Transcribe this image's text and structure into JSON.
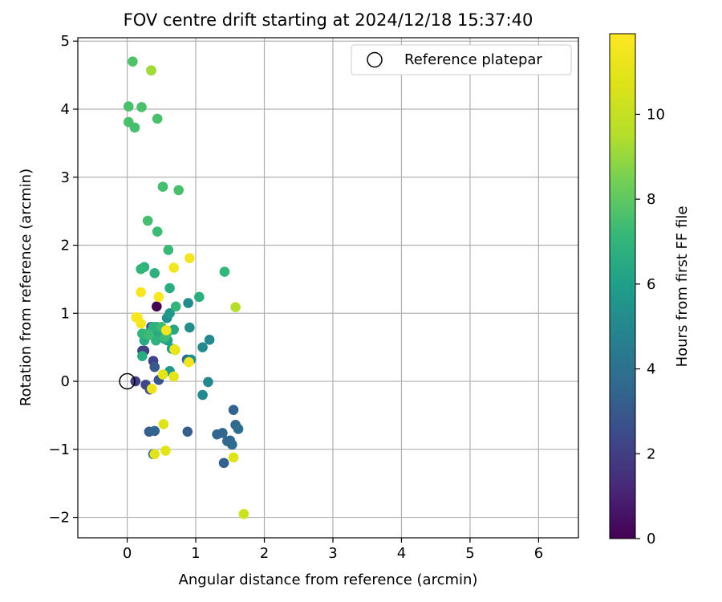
{
  "chart_data": {
    "type": "scatter",
    "title": "FOV centre drift starting at 2024/12/18 15:37:40",
    "xlabel": "Angular distance from reference (arcmin)",
    "ylabel": "Rotation from reference (arcmin)",
    "xlim": [
      -0.72,
      6.58
    ],
    "ylim": [
      -2.3,
      5.05
    ],
    "xticks": [
      0,
      1,
      2,
      3,
      4,
      5,
      6
    ],
    "yticks": [
      -2,
      -1,
      0,
      1,
      2,
      3,
      4,
      5
    ],
    "xtick_labels": [
      "0",
      "1",
      "2",
      "3",
      "4",
      "5",
      "6"
    ],
    "ytick_labels": [
      "−2",
      "−1",
      "0",
      "1",
      "2",
      "3",
      "4",
      "5"
    ],
    "grid": true,
    "legend": {
      "position": "top-right",
      "entries": [
        "Reference platepar"
      ]
    },
    "reference_point": {
      "label": "Reference platepar",
      "x": 0,
      "y": 0
    },
    "colorbar": {
      "label": "Hours from first FF file",
      "range": [
        0,
        11.9
      ],
      "colormap": "viridis",
      "ticks": [
        0,
        2,
        4,
        6,
        8,
        10
      ],
      "tick_labels": [
        "0",
        "2",
        "4",
        "6",
        "8",
        "10"
      ]
    },
    "series": [
      {
        "x": [
          0.43,
          0.12,
          0.27,
          0.33,
          0.38,
          0.46,
          0.35,
          0.25,
          0.22,
          0.4,
          0.32,
          0.4,
          0.88,
          0.38,
          1.55,
          1.58,
          1.62,
          1.5,
          1.53,
          1.46,
          1.39,
          1.31,
          1.41,
          0.87,
          0.42,
          0.33,
          1.1,
          1.18,
          1.1,
          1.2,
          0.91,
          0.89,
          0.93,
          0.62,
          0.58,
          0.62,
          0.59,
          0.68,
          0.65,
          0.55,
          0.46,
          0.43,
          0.38,
          0.42,
          0.25,
          0.22,
          1.05,
          0.62,
          0.4,
          0.25,
          0.2,
          0.22,
          0.5,
          0.6,
          0.55,
          0.58,
          0.71,
          1.42,
          0.3,
          0.32,
          0.44,
          0.52,
          0.75,
          0.3,
          0.02,
          0.11,
          0.44,
          0.02,
          0.21,
          0.08,
          0.35,
          0.35,
          1.58,
          0.68,
          0.91,
          0.57,
          0.7,
          0.52,
          0.53,
          0.56,
          1.55,
          0.4,
          1.7,
          0.36,
          0.15,
          0.2,
          0.13,
          0.2,
          0.46,
          0.68,
          0.69,
          0.9
        ],
        "y": [
          1.1,
          0.0,
          -0.05,
          -0.12,
          0.3,
          0.02,
          0.8,
          0.45,
          0.45,
          0.21,
          -0.74,
          -0.73,
          -0.74,
          -1.07,
          -0.42,
          -0.64,
          -0.7,
          -0.87,
          -0.93,
          -0.88,
          -0.76,
          -0.78,
          -1.2,
          0.32,
          0.7,
          0.72,
          -0.2,
          -0.01,
          0.5,
          0.61,
          0.79,
          1.15,
          0.32,
          0.15,
          0.93,
          1.0,
          0.6,
          0.76,
          0.48,
          0.62,
          0.7,
          0.8,
          0.8,
          0.6,
          0.6,
          0.37,
          1.24,
          1.37,
          1.59,
          1.68,
          1.65,
          0.7,
          0.8,
          1.93,
          0.65,
          0.71,
          1.1,
          1.61,
          0.7,
          0.68,
          2.2,
          2.86,
          2.81,
          2.36,
          3.81,
          3.73,
          3.86,
          4.04,
          4.03,
          4.7,
          4.57,
          4.57,
          1.09,
          1.67,
          1.81,
          0.75,
          0.46,
          0.1,
          -0.63,
          -1.02,
          -1.12,
          -1.07,
          -1.95,
          -0.11,
          0.94,
          0.85,
          0.94,
          1.31,
          1.24,
          0.07,
          0.47,
          0.28
        ],
        "hours": [
          0.0,
          2.0,
          2.3,
          2.5,
          2.2,
          2.8,
          2.6,
          2.0,
          2.2,
          3.0,
          3.2,
          3.4,
          3.2,
          3.6,
          3.4,
          3.6,
          3.8,
          3.7,
          3.8,
          3.6,
          3.5,
          3.5,
          3.3,
          3.9,
          3.9,
          4.1,
          5.0,
          5.0,
          5.1,
          5.0,
          5.2,
          5.2,
          5.5,
          5.7,
          5.3,
          5.7,
          6.0,
          6.4,
          6.0,
          6.3,
          6.5,
          6.6,
          6.8,
          6.8,
          6.5,
          6.6,
          6.7,
          6.6,
          6.8,
          6.9,
          7.0,
          7.0,
          7.3,
          7.2,
          7.3,
          7.4,
          7.1,
          7.1,
          7.1,
          7.3,
          7.3,
          7.5,
          7.6,
          7.5,
          7.6,
          7.5,
          7.6,
          7.6,
          7.6,
          7.7,
          7.6,
          9.2,
          9.5,
          11.5,
          11.5,
          11.4,
          10.5,
          11.0,
          10.8,
          10.9,
          10.8,
          10.9,
          10.2,
          11.2,
          11.5,
          11.5,
          11.7,
          11.7,
          11.8,
          11.0,
          11.2,
          11.4
        ]
      }
    ]
  }
}
